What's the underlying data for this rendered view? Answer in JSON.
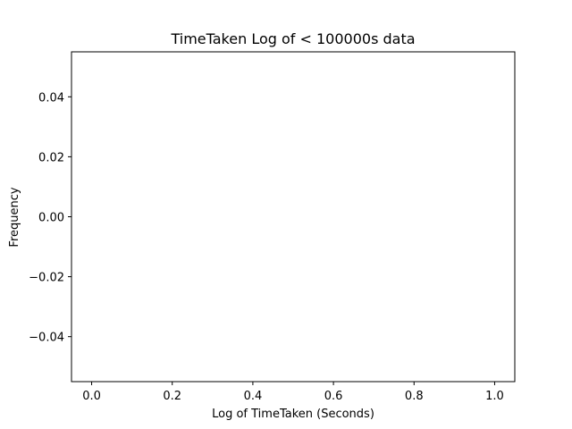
{
  "chart_data": {
    "type": "bar",
    "title": "TimeTaken Log of < 100000s data",
    "xlabel": "Log of TimeTaken (Seconds)",
    "ylabel": "Frequency",
    "values": [],
    "xlim": [
      -0.05,
      1.05
    ],
    "ylim": [
      -0.055,
      0.055
    ],
    "xticks": [
      0.0,
      0.2,
      0.4,
      0.6,
      0.8,
      1.0
    ],
    "xtick_labels": [
      "0.0",
      "0.2",
      "0.4",
      "0.6",
      "0.8",
      "1.0"
    ],
    "yticks": [
      -0.04,
      -0.02,
      0.0,
      0.02,
      0.04
    ],
    "ytick_labels": [
      "−0.04",
      "−0.02",
      "0.00",
      "0.02",
      "0.04"
    ],
    "grid": false,
    "legend": null
  }
}
